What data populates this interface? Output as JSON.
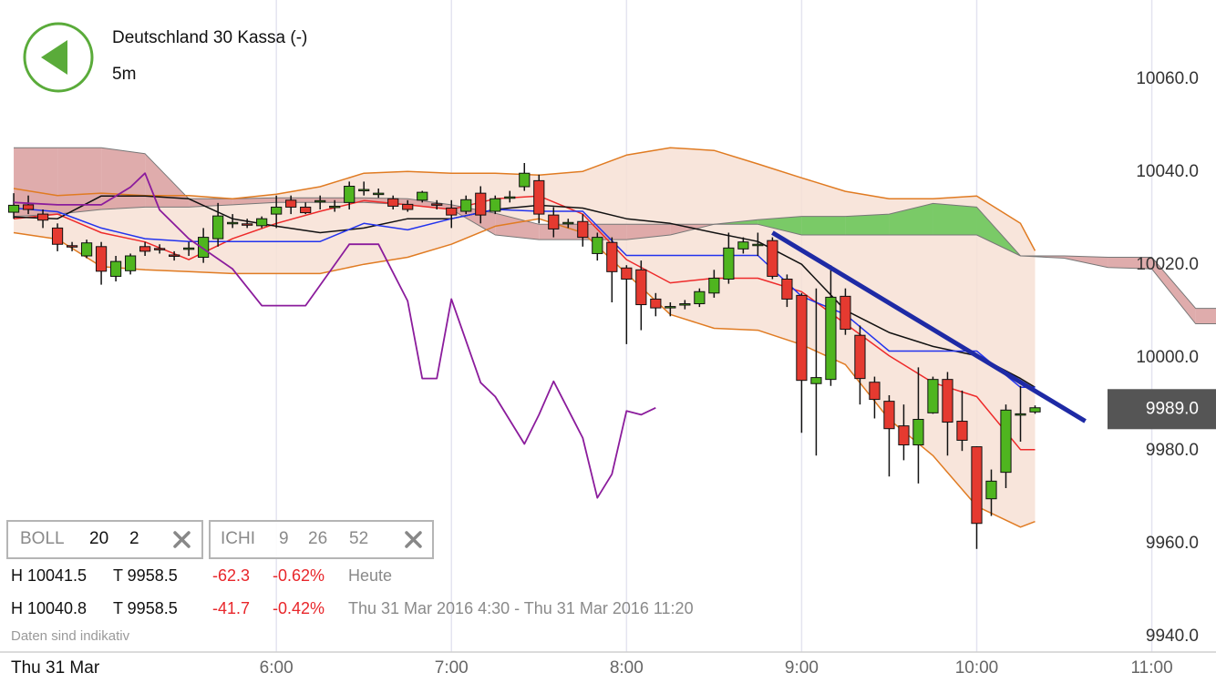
{
  "header": {
    "title": "Deutschland 30 Kassa (-)",
    "interval": "5m"
  },
  "indicators": [
    {
      "name": "BOLL",
      "params": [
        20,
        2
      ]
    },
    {
      "name": "ICHI",
      "params": [
        9,
        26,
        52
      ]
    }
  ],
  "stats": [
    {
      "high": "H 10041.5",
      "low": "T 9958.5",
      "change": -62.3,
      "change_pct": "-0.62%",
      "period": "Heute"
    },
    {
      "high": "H 10040.8",
      "low": "T 9958.5",
      "change": -41.7,
      "change_pct": "-0.42%",
      "period": "Thu 31 Mar 2016 4:30 - Thu 31 Mar 2016 11:20"
    }
  ],
  "note": "Daten sind indikativ",
  "date_label": "Thu 31 Mar",
  "chart_data": {
    "type": "candlestick",
    "x": [
      270,
      275,
      280,
      285,
      290,
      295,
      300,
      305,
      310,
      315,
      320,
      325,
      330,
      335,
      340,
      345,
      350,
      355,
      360,
      365,
      370,
      375,
      380,
      385,
      390,
      395,
      400,
      405,
      410,
      415,
      420,
      425,
      430,
      435,
      440,
      445,
      450,
      455,
      460,
      465,
      470,
      475,
      480,
      485,
      490,
      495,
      500,
      505,
      510,
      515,
      520,
      525,
      530,
      535,
      540,
      545,
      550,
      555,
      560,
      565,
      570,
      575,
      580,
      585,
      590,
      595,
      600,
      605,
      610,
      615,
      620
    ],
    "open": [
      10031.4,
      10033,
      10031,
      10028,
      10024.2,
      10022,
      10024,
      10017.6,
      10018.8,
      10024,
      10023.6,
      10022.2,
      10023.6,
      10021.7,
      10025.7,
      10029.1,
      10028.9,
      10028.5,
      10031,
      10034,
      10032.5,
      10033.8,
      10032.6,
      10033.5,
      10036.2,
      10035.4,
      10034.3,
      10033.1,
      10034,
      10033.2,
      10032.3,
      10031.6,
      10035.5,
      10031.6,
      10034.6,
      10036.9,
      10038.2,
      10030.8,
      10029.1,
      10029.4,
      10022.5,
      10024.9,
      10019.4,
      10019,
      10012.7,
      10011,
      10011.6,
      10011.7,
      10014,
      10017,
      10023.5,
      10024.4,
      10025.3,
      10017,
      10013.5,
      9994.5,
      9995.4,
      10013.3,
      10004.9,
      9994.8,
      9990.7,
      9985.4,
      9981.3,
      9988.2,
      9995.4,
      9986.4,
      9980.9,
      9969.7,
      9975.4,
      9987.9,
      9988.4
    ],
    "high": [
      10035.5,
      10035,
      10032,
      10029,
      10025,
      10025.5,
      10025,
      10022,
      10022.5,
      10025,
      10024.5,
      10023,
      10025,
      10028,
      10033.4,
      10031,
      10030,
      10030.5,
      10035,
      10035,
      10033.5,
      10035,
      10034,
      10038,
      10038,
      10036.5,
      10035,
      10034,
      10036,
      10034,
      10034,
      10035,
      10037,
      10035,
      10036,
      10042,
      10039.5,
      10032.5,
      10030,
      10031,
      10027,
      10026,
      10020,
      10021,
      10014,
      10012,
      10012.5,
      10015,
      10019,
      10027,
      10026,
      10027,
      10026,
      10018,
      10014,
      10015,
      10020,
      10015,
      10007,
      9996,
      9992,
      9990,
      9998,
      9996,
      9997,
      9993,
      9981,
      9976,
      9990,
      9994,
      9989.8
    ],
    "low": [
      10030,
      10031,
      10028,
      10023,
      10023,
      10021.5,
      10015.8,
      10016.5,
      10018,
      10022,
      10022.5,
      10021,
      10022,
      10020.5,
      10024,
      10028,
      10028,
      10028,
      10028,
      10031,
      10031,
      10032,
      10031.5,
      10032,
      10035,
      10034.5,
      10032,
      10031.5,
      10033.5,
      10032,
      10028,
      10031,
      10029,
      10031,
      10033.5,
      10036,
      10029,
      10026,
      10028,
      10024,
      10021,
      10012,
      10003,
      10006,
      10009,
      10009,
      10010.5,
      10011,
      10013,
      10016,
      10022.5,
      10022,
      10017,
      10011,
      9983.9,
      9979,
      9994,
      10005,
      9990,
      9987,
      9974.5,
      9978,
      9973,
      9988,
      9979,
      9980,
      9958.9,
      9966,
      9972,
      9982,
      9988
    ],
    "close": [
      10032.9,
      10032,
      10029.7,
      10024.5,
      10024,
      10024.8,
      10018.7,
      10020.8,
      10022,
      10023,
      10023.5,
      10022,
      10023.7,
      10026,
      10030.6,
      10029.2,
      10028.8,
      10030,
      10032.5,
      10032.5,
      10031.3,
      10033.9,
      10032.7,
      10037,
      10036.3,
      10035.5,
      10032.7,
      10032,
      10035.7,
      10033.1,
      10030.8,
      10034.1,
      10030.8,
      10034.3,
      10034.7,
      10039.8,
      10031,
      10027.8,
      10029.2,
      10026,
      10026,
      10018.6,
      10017,
      10011.5,
      10010.8,
      10011.1,
      10011.7,
      10014.3,
      10017.2,
      10023.7,
      10025,
      10024.5,
      10017.6,
      10012.7,
      9995.2,
      9995.8,
      10013.1,
      10006.2,
      9995.6,
      9991.1,
      9984.8,
      9981.3,
      9986.8,
      9995.4,
      9986.2,
      9982.3,
      9964.4,
      9973.5,
      9988.8,
      9988,
      9989.3
    ],
    "up_color": "#4fb51f",
    "down_color": "#e53a30",
    "xlim": [
      265.3,
      682
    ],
    "ylim": [
      9936.7,
      10077.1
    ],
    "xticks": [
      {
        "value": 360,
        "label": "6:00"
      },
      {
        "value": 420,
        "label": "7:00"
      },
      {
        "value": 480,
        "label": "8:00"
      },
      {
        "value": 540,
        "label": "9:00"
      },
      {
        "value": 600,
        "label": "10:00"
      },
      {
        "value": 660,
        "label": "11:00"
      }
    ],
    "yticks": [
      {
        "value": 9940,
        "label": "9940.0"
      },
      {
        "value": 9960,
        "label": "9960.0"
      },
      {
        "value": 9980,
        "label": "9980.0"
      },
      {
        "value": 10000,
        "label": "10000.0"
      },
      {
        "value": 10020,
        "label": "10020.0"
      },
      {
        "value": 10040,
        "label": "10040.0"
      },
      {
        "value": 10060,
        "label": "10060.0"
      }
    ],
    "grid": "x",
    "last_price": {
      "value": 9989,
      "label": "9989.0"
    },
    "bollinger": {
      "x": [
        270,
        285,
        300,
        315,
        330,
        345,
        360,
        375,
        390,
        405,
        420,
        435,
        450,
        465,
        480,
        495,
        510,
        525,
        540,
        555,
        570,
        585,
        600,
        615,
        620
      ],
      "upper": [
        10036.5,
        10035,
        10035.5,
        10035,
        10035,
        10034.3,
        10035.3,
        10036.9,
        10039.8,
        10040.2,
        10039.8,
        10039.8,
        10039.4,
        10040.2,
        10043.7,
        10045.3,
        10044.7,
        10041.8,
        10038.8,
        10035.9,
        10034.3,
        10034.3,
        10034.9,
        10029,
        10023.1
      ],
      "middle": [
        10030,
        10031,
        10027,
        10025,
        10021.2,
        10025.7,
        10029,
        10031.6,
        10033.9,
        10033,
        10032,
        10034.3,
        10034.9,
        10031,
        10021.2,
        10016.2,
        10017.2,
        10017.2,
        10014.3,
        10007.4,
        10000.5,
        9994.7,
        9991.7,
        9980.3,
        9980.3
      ],
      "lower": [
        10027,
        10025.6,
        10019.7,
        10019,
        10018.6,
        10018.2,
        10018.2,
        10018.2,
        10020.2,
        10021.7,
        10024.5,
        10028.4,
        10030,
        10027,
        10018.2,
        10009.4,
        10006.4,
        10006,
        10002.9,
        9998.6,
        9986.8,
        9979,
        9968.1,
        9963.6,
        9964.8
      ],
      "band_color": "#e07b22",
      "middle_color": "#ee2a2a",
      "fill": "#f7e1d5"
    },
    "ichimoku": {
      "x": [
        270,
        285,
        300,
        315,
        330,
        345,
        360,
        375,
        390,
        405,
        420,
        435,
        450,
        465,
        480,
        495,
        510,
        525,
        540,
        555,
        570,
        585,
        600,
        615,
        620
      ],
      "tenkan": [
        10032.3,
        10031.5,
        10028,
        10025.7,
        10025.1,
        10025.1,
        10025.1,
        10025.1,
        10029,
        10027.6,
        10030,
        10032,
        10031.6,
        10031.6,
        10022.1,
        10022.1,
        10022.1,
        10022.1,
        10013.3,
        10009.4,
        10001.5,
        10001.5,
        10001.5,
        9993.7,
        9993.7
      ],
      "kijun": [
        10030.4,
        10030,
        10034.9,
        10034.9,
        10034.3,
        10030,
        10028.4,
        10027,
        10028,
        10030,
        10030,
        10032,
        10032.9,
        10032.3,
        10030,
        10029,
        10027,
        10025.1,
        10020.2,
        10010.3,
        10005.5,
        10002.5,
        10000.5,
        9995.6,
        9993.7
      ],
      "tenkan_color": "#2233ee",
      "kijun_color": "#111111",
      "cloud_x": [
        270,
        285,
        300,
        315,
        330,
        345,
        360,
        375,
        390,
        405,
        420,
        435,
        450,
        465,
        480,
        495,
        510,
        525,
        540,
        555,
        570,
        585,
        600,
        615,
        630,
        645,
        660,
        675,
        682
      ],
      "span_a": [
        10030.5,
        10031,
        10032,
        10032.5,
        10032.5,
        10033,
        10033.5,
        10033.5,
        10033.5,
        10033,
        10032,
        10026.5,
        10025.5,
        10025.5,
        10025.5,
        10026.5,
        10028.8,
        10029.8,
        10030.5,
        10030.5,
        10031,
        10033.3,
        10032.5,
        10022,
        10021.5,
        10019.5,
        10019.2,
        10007.4,
        10007.4
      ],
      "span_b": [
        10045.3,
        10045.3,
        10045.3,
        10044,
        10034.3,
        10034.3,
        10034.5,
        10034.5,
        10034.5,
        10034.3,
        10033,
        10031.2,
        10028.8,
        10028.8,
        10028.8,
        10028.8,
        10028.8,
        10028.8,
        10026.5,
        10026.5,
        10026.5,
        10026.5,
        10026.5,
        10022,
        10022,
        10021.7,
        10021.7,
        10010.7,
        10010.7
      ],
      "cloud_up": "#6cc65a",
      "cloud_down": "#dba3a3",
      "cloud_line": "#777777",
      "chikou_x": [
        270,
        285,
        300,
        310,
        315,
        320,
        330,
        345,
        355,
        370,
        385,
        395,
        405,
        410,
        415,
        420,
        430,
        435,
        445,
        450,
        455,
        465,
        470,
        475,
        480,
        485,
        490
      ],
      "chikou": [
        10033.5,
        10033,
        10033,
        10036.8,
        10039.8,
        10031.9,
        10025.7,
        10019.2,
        10011.3,
        10011.3,
        10024.5,
        10024.5,
        10012.3,
        9995.6,
        9995.6,
        10012.7,
        9994.7,
        9991.7,
        9981.5,
        9987.8,
        9995,
        9982.8,
        9969.9,
        9975,
        9988.6,
        9987.8,
        9989.3
      ],
      "chikou_color": "#8b1c9c"
    },
    "trendline": {
      "x": [
        530,
        637.2
      ],
      "values": [
        10027,
        9986.4
      ],
      "color": "#1e2aa5"
    }
  }
}
